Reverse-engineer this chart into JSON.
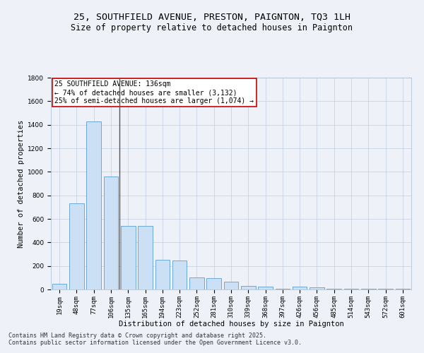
{
  "title": "25, SOUTHFIELD AVENUE, PRESTON, PAIGNTON, TQ3 1LH",
  "subtitle": "Size of property relative to detached houses in Paignton",
  "xlabel": "Distribution of detached houses by size in Paignton",
  "ylabel": "Number of detached properties",
  "categories": [
    "19sqm",
    "48sqm",
    "77sqm",
    "106sqm",
    "135sqm",
    "165sqm",
    "194sqm",
    "223sqm",
    "252sqm",
    "281sqm",
    "310sqm",
    "339sqm",
    "368sqm",
    "397sqm",
    "426sqm",
    "456sqm",
    "485sqm",
    "514sqm",
    "543sqm",
    "572sqm",
    "601sqm"
  ],
  "values": [
    50,
    730,
    1430,
    960,
    540,
    540,
    250,
    245,
    100,
    95,
    65,
    28,
    25,
    5,
    25,
    20,
    5,
    5,
    5,
    5,
    5
  ],
  "bar_color": "#cce0f5",
  "bar_edge_color": "#5a9fd4",
  "vline_x": 3.5,
  "vline_color": "#555555",
  "annotation_text": "25 SOUTHFIELD AVENUE: 136sqm\n← 74% of detached houses are smaller (3,132)\n25% of semi-detached houses are larger (1,074) →",
  "annotation_box_color": "#ffffff",
  "annotation_box_edge": "#cc0000",
  "ylim": [
    0,
    1800
  ],
  "yticks": [
    0,
    200,
    400,
    600,
    800,
    1000,
    1200,
    1400,
    1600,
    1800
  ],
  "background_color": "#eef2f8",
  "footer_text": "Contains HM Land Registry data © Crown copyright and database right 2025.\nContains public sector information licensed under the Open Government Licence v3.0.",
  "title_fontsize": 9.5,
  "subtitle_fontsize": 8.5,
  "axis_label_fontsize": 7.5,
  "tick_fontsize": 6.5,
  "annotation_fontsize": 7,
  "footer_fontsize": 6
}
